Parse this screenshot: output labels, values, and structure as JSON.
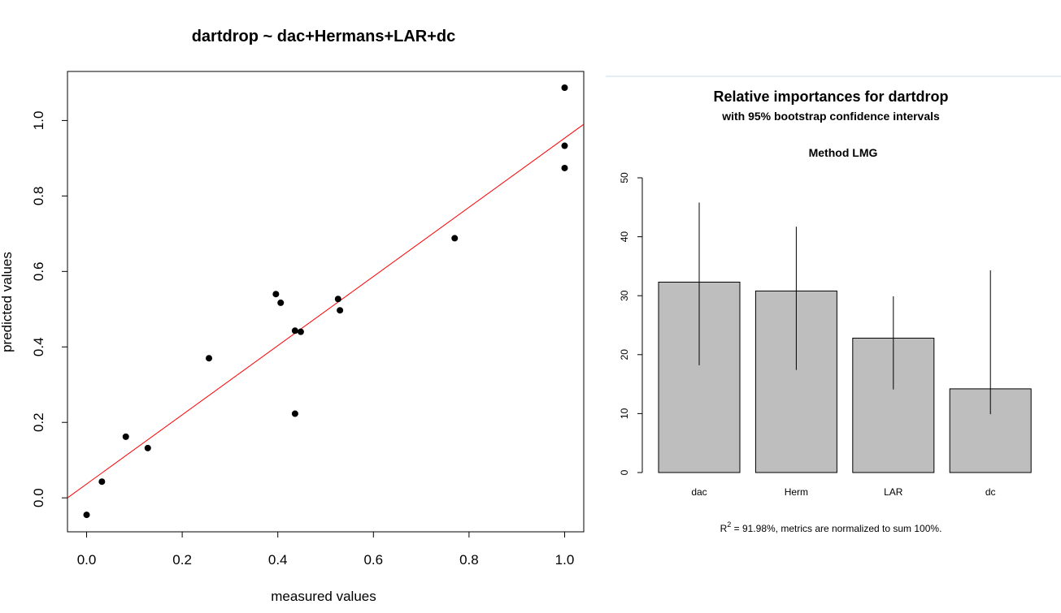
{
  "chart_data": [
    {
      "type": "scatter",
      "title": "dartdrop ~ dac+Hermans+LAR+dc",
      "xlabel": "measured values",
      "ylabel": "predicted values",
      "xlim": [
        -0.04,
        1.04
      ],
      "ylim": [
        -0.09,
        1.13
      ],
      "xticks": [
        "0.0",
        "0.2",
        "0.4",
        "0.6",
        "0.8",
        "1.0"
      ],
      "yticks": [
        "0.0",
        "0.2",
        "0.4",
        "0.6",
        "0.8",
        "1.0"
      ],
      "point_color": "#000000",
      "fit_line": {
        "color": "#ff0000",
        "points": [
          [
            -0.04,
            0.0
          ],
          [
            1.04,
            0.99
          ]
        ]
      },
      "points": [
        [
          0.0,
          -0.045
        ],
        [
          0.032,
          0.043
        ],
        [
          0.082,
          0.162
        ],
        [
          0.128,
          0.132
        ],
        [
          0.256,
          0.37
        ],
        [
          0.396,
          0.54
        ],
        [
          0.406,
          0.517
        ],
        [
          0.436,
          0.223
        ],
        [
          0.436,
          0.443
        ],
        [
          0.448,
          0.44
        ],
        [
          0.526,
          0.527
        ],
        [
          0.53,
          0.497
        ],
        [
          0.77,
          0.688
        ],
        [
          1.0,
          1.087
        ],
        [
          1.0,
          0.933
        ],
        [
          1.0,
          0.874
        ]
      ]
    },
    {
      "type": "bar",
      "title": "Relative importances for dartdrop",
      "subtitle": "with 95% bootstrap confidence intervals",
      "method": "Method LMG",
      "categories": [
        "dac",
        "Herm",
        "LAR",
        "dc"
      ],
      "values": [
        32.3,
        30.8,
        22.8,
        14.2
      ],
      "ci_lower": [
        18.2,
        17.4,
        14.1,
        9.9
      ],
      "ci_upper": [
        45.8,
        41.7,
        29.9,
        34.3
      ],
      "ylim": [
        0,
        50
      ],
      "yticks": [
        "0",
        "10",
        "20",
        "30",
        "40",
        "50"
      ],
      "bar_color": "#bebebe",
      "note_r2_label": "R",
      "note_r2_sup": "2",
      "note_rest": " = 91.98%, metrics are normalized to sum 100%."
    }
  ]
}
